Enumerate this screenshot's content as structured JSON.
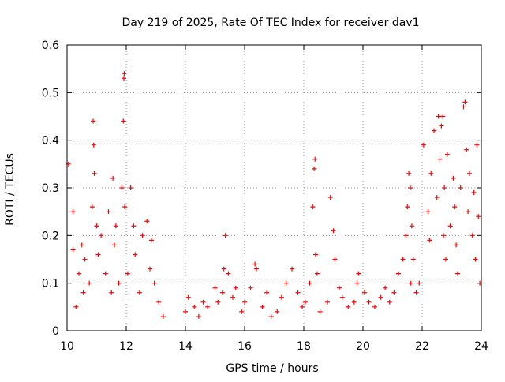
{
  "chart_data": {
    "type": "scatter",
    "title": "Day 219 of 2025, Rate Of TEC Index for receiver dav1",
    "xlabel": "GPS time / hours",
    "ylabel": "ROTI / TECUs",
    "xlim": [
      10,
      24
    ],
    "ylim": [
      0,
      0.6
    ],
    "xticks": [
      10,
      12,
      14,
      16,
      18,
      20,
      22,
      24
    ],
    "xtick_labels": [
      "10",
      "12",
      "14",
      "16",
      "18",
      "20",
      "22",
      "24"
    ],
    "yticks": [
      0,
      0.1,
      0.2,
      0.3,
      0.4,
      0.5,
      0.6
    ],
    "ytick_labels": [
      "0",
      "0.1",
      "0.2",
      "0.3",
      "0.4",
      "0.5",
      "0.6"
    ],
    "grid": true,
    "grid_style": "dotted",
    "legend": "none",
    "marker": "+",
    "marker_color": "#ff0000",
    "series": [
      {
        "x": [
          10.05,
          10.2,
          10.2,
          10.3,
          10.4,
          10.5,
          10.55,
          10.6,
          10.75,
          10.85,
          10.88,
          10.9,
          10.92,
          11.0,
          11.05,
          11.15,
          11.3,
          11.4,
          11.5,
          11.55,
          11.6,
          11.65,
          11.75,
          11.85,
          11.9,
          11.92,
          11.93,
          11.95,
          12.05,
          12.15,
          12.25,
          12.3,
          12.45,
          12.55,
          12.7,
          12.8,
          12.85,
          12.95,
          13.1,
          13.25,
          14.0,
          14.1,
          14.3,
          14.45,
          14.6,
          14.75,
          15.0,
          15.1,
          15.25,
          15.3,
          15.35,
          15.45,
          15.6,
          15.7,
          15.9,
          16.0,
          16.2,
          16.35,
          16.4,
          16.6,
          16.75,
          16.9,
          17.1,
          17.25,
          17.4,
          17.6,
          17.8,
          17.95,
          18.05,
          18.2,
          18.3,
          18.35,
          18.38,
          18.4,
          18.45,
          18.55,
          18.8,
          18.9,
          19.0,
          19.05,
          19.2,
          19.3,
          19.5,
          19.7,
          19.8,
          19.85,
          20.05,
          20.2,
          20.4,
          20.6,
          20.75,
          20.9,
          21.05,
          21.2,
          21.35,
          21.45,
          21.5,
          21.55,
          21.6,
          21.62,
          21.65,
          21.7,
          21.8,
          21.9,
          22.05,
          22.2,
          22.25,
          22.3,
          22.4,
          22.5,
          22.55,
          22.6,
          22.65,
          22.7,
          22.72,
          22.75,
          22.8,
          22.85,
          22.95,
          23.05,
          23.1,
          23.15,
          23.2,
          23.3,
          23.4,
          23.45,
          23.5,
          23.55,
          23.6,
          23.7,
          23.75,
          23.8,
          23.85,
          23.9,
          23.95
        ],
        "y": [
          0.35,
          0.25,
          0.17,
          0.05,
          0.12,
          0.18,
          0.08,
          0.15,
          0.1,
          0.26,
          0.44,
          0.39,
          0.33,
          0.22,
          0.16,
          0.2,
          0.12,
          0.25,
          0.08,
          0.32,
          0.18,
          0.22,
          0.1,
          0.3,
          0.44,
          0.53,
          0.54,
          0.26,
          0.12,
          0.3,
          0.22,
          0.16,
          0.08,
          0.2,
          0.23,
          0.13,
          0.19,
          0.1,
          0.06,
          0.03,
          0.04,
          0.07,
          0.05,
          0.03,
          0.06,
          0.05,
          0.09,
          0.06,
          0.08,
          0.13,
          0.2,
          0.12,
          0.07,
          0.09,
          0.04,
          0.06,
          0.09,
          0.14,
          0.13,
          0.05,
          0.08,
          0.03,
          0.04,
          0.07,
          0.1,
          0.13,
          0.08,
          0.05,
          0.06,
          0.1,
          0.26,
          0.34,
          0.36,
          0.16,
          0.12,
          0.04,
          0.06,
          0.28,
          0.21,
          0.15,
          0.09,
          0.07,
          0.05,
          0.06,
          0.1,
          0.12,
          0.08,
          0.06,
          0.05,
          0.07,
          0.09,
          0.06,
          0.08,
          0.12,
          0.15,
          0.2,
          0.26,
          0.33,
          0.3,
          0.1,
          0.22,
          0.15,
          0.08,
          0.1,
          0.39,
          0.25,
          0.19,
          0.33,
          0.42,
          0.28,
          0.45,
          0.36,
          0.43,
          0.45,
          0.2,
          0.3,
          0.15,
          0.37,
          0.22,
          0.32,
          0.26,
          0.18,
          0.12,
          0.3,
          0.47,
          0.48,
          0.38,
          0.25,
          0.33,
          0.2,
          0.29,
          0.15,
          0.39,
          0.24,
          0.1
        ]
      }
    ]
  }
}
